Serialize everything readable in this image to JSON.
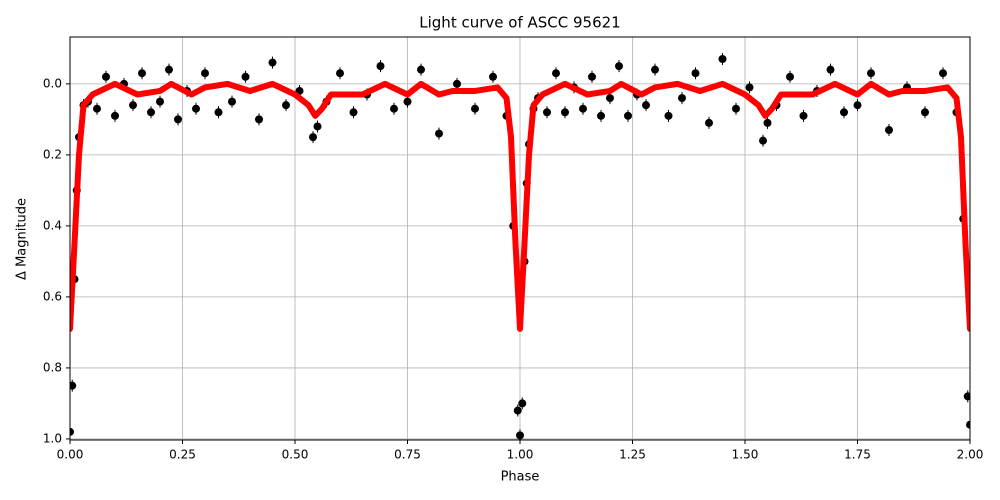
{
  "chart_data": {
    "type": "scatter",
    "title": "Light curve of ASCC 95621",
    "x_label": "Phase",
    "y_label": "Δ Magnitude",
    "xlim": [
      0,
      2
    ],
    "ylim": [
      -0.132,
      1.003
    ],
    "y_inverted": true,
    "grid": true,
    "xticks": [
      {
        "value": 0,
        "label": "0.00"
      },
      0.25,
      {
        "value": 0.5,
        "label": "0.50"
      },
      0.75,
      {
        "value": 1,
        "label": "1.00"
      },
      1.25,
      {
        "value": 1.5,
        "label": "1.50"
      },
      1.75,
      {
        "value": 2,
        "label": "2.00"
      }
    ],
    "yticks": [
      {
        "value": 0,
        "label": "0.0"
      },
      0.2,
      0.4,
      0.6,
      0.8,
      {
        "value": 1,
        "label": "1.0"
      }
    ],
    "observations": {
      "color": "#000000",
      "x": [
        0,
        0.005,
        0.01,
        0.015,
        0.02,
        0.03,
        0.04,
        0.06,
        0.08,
        0.1,
        0.12,
        0.14,
        0.16,
        0.18,
        0.2,
        0.22,
        0.24,
        0.26,
        0.28,
        0.3,
        0.33,
        0.36,
        0.39,
        0.42,
        0.45,
        0.48,
        0.51,
        0.54,
        0.55,
        0.57,
        0.6,
        0.63,
        0.66,
        0.69,
        0.72,
        0.75,
        0.78,
        0.82,
        0.86,
        0.9,
        0.94,
        0.97,
        0.985,
        0.995,
        1,
        1.005,
        1.01,
        1.015,
        1.02,
        1.03,
        1.04,
        1.06,
        1.08,
        1.1,
        1.12,
        1.14,
        1.16,
        1.18,
        1.2,
        1.22,
        1.24,
        1.26,
        1.28,
        1.3,
        1.33,
        1.36,
        1.39,
        1.42,
        1.45,
        1.48,
        1.51,
        1.54,
        1.55,
        1.57,
        1.6,
        1.63,
        1.66,
        1.69,
        1.72,
        1.75,
        1.78,
        1.82,
        1.86,
        1.9,
        1.94,
        1.97,
        1.985,
        1.995,
        2
      ],
      "y": [
        0.98,
        0.85,
        0.55,
        0.3,
        0.15,
        0.06,
        0.05,
        0.07,
        -0.02,
        0.09,
        0.0,
        0.06,
        -0.03,
        0.08,
        0.05,
        -0.04,
        0.1,
        0.02,
        0.07,
        -0.03,
        0.08,
        0.05,
        -0.02,
        0.1,
        -0.06,
        0.06,
        0.02,
        0.15,
        0.12,
        0.05,
        -0.03,
        0.08,
        0.03,
        -0.05,
        0.07,
        0.05,
        -0.04,
        0.14,
        0.0,
        0.07,
        -0.02,
        0.09,
        0.4,
        0.92,
        0.99,
        0.9,
        0.5,
        0.28,
        0.17,
        0.07,
        0.04,
        0.08,
        -0.03,
        0.08,
        0.01,
        0.07,
        -0.02,
        0.09,
        0.04,
        -0.05,
        0.09,
        0.03,
        0.06,
        -0.04,
        0.09,
        0.04,
        -0.03,
        0.11,
        -0.07,
        0.07,
        0.01,
        0.16,
        0.11,
        0.06,
        -0.02,
        0.09,
        0.02,
        -0.04,
        0.08,
        0.06,
        -0.03,
        0.13,
        0.01,
        0.08,
        -0.03,
        0.08,
        0.38,
        0.88,
        0.96
      ]
    },
    "model": {
      "color": "#ff0000",
      "x": [
        0,
        0.01,
        0.02,
        0.03,
        0.05,
        0.1,
        0.15,
        0.2,
        0.225,
        0.27,
        0.3,
        0.35,
        0.4,
        0.45,
        0.5,
        0.53,
        0.545,
        0.56,
        0.58,
        0.65,
        0.7,
        0.75,
        0.78,
        0.82,
        0.85,
        0.9,
        0.95,
        0.97,
        0.98,
        0.99,
        1,
        1.01,
        1.02,
        1.03,
        1.05,
        1.1,
        1.15,
        1.2,
        1.225,
        1.27,
        1.3,
        1.35,
        1.4,
        1.45,
        1.5,
        1.53,
        1.545,
        1.56,
        1.58,
        1.65,
        1.7,
        1.75,
        1.78,
        1.82,
        1.85,
        1.9,
        1.95,
        1.97,
        1.98,
        1.99,
        2
      ],
      "y": [
        0.69,
        0.45,
        0.2,
        0.06,
        0.03,
        0.0,
        0.03,
        0.02,
        0.0,
        0.03,
        0.01,
        0.0,
        0.02,
        0.0,
        0.03,
        0.06,
        0.09,
        0.07,
        0.03,
        0.03,
        0.0,
        0.03,
        0.0,
        0.03,
        0.02,
        0.02,
        0.01,
        0.04,
        0.15,
        0.45,
        0.69,
        0.45,
        0.2,
        0.06,
        0.03,
        0.0,
        0.03,
        0.02,
        0.0,
        0.03,
        0.01,
        0.0,
        0.02,
        0.0,
        0.03,
        0.06,
        0.09,
        0.07,
        0.03,
        0.03,
        0.0,
        0.03,
        0.0,
        0.03,
        0.02,
        0.02,
        0.01,
        0.04,
        0.15,
        0.45,
        0.69
      ]
    }
  }
}
